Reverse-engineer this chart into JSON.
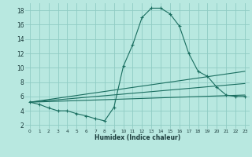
{
  "title": "",
  "xlabel": "Humidex (Indice chaleur)",
  "bg_color": "#b8e8e0",
  "grid_color": "#90ccc4",
  "line_color": "#1a6e60",
  "xlim": [
    -0.5,
    23.5
  ],
  "ylim": [
    1.5,
    19.0
  ],
  "xticks": [
    0,
    1,
    2,
    3,
    4,
    5,
    6,
    7,
    8,
    9,
    10,
    11,
    12,
    13,
    14,
    15,
    16,
    17,
    18,
    19,
    20,
    21,
    22,
    23
  ],
  "yticks": [
    2,
    4,
    6,
    8,
    10,
    12,
    14,
    16,
    18
  ],
  "curve1_x": [
    0,
    1,
    2,
    3,
    4,
    5,
    6,
    7,
    8,
    9,
    10,
    11,
    12,
    13,
    14,
    15,
    16,
    17,
    18,
    19,
    20,
    21,
    22,
    23
  ],
  "curve1_y": [
    5.2,
    4.9,
    4.4,
    4.0,
    4.0,
    3.6,
    3.3,
    2.9,
    2.6,
    4.5,
    10.2,
    13.2,
    17.0,
    18.3,
    18.3,
    17.5,
    15.8,
    12.0,
    9.5,
    8.8,
    7.3,
    6.2,
    6.0,
    6.0
  ],
  "line2_x": [
    0,
    23
  ],
  "line2_y": [
    5.2,
    9.5
  ],
  "line3_x": [
    0,
    23
  ],
  "line3_y": [
    5.2,
    7.8
  ],
  "line4_x": [
    0,
    23
  ],
  "line4_y": [
    5.2,
    6.2
  ]
}
